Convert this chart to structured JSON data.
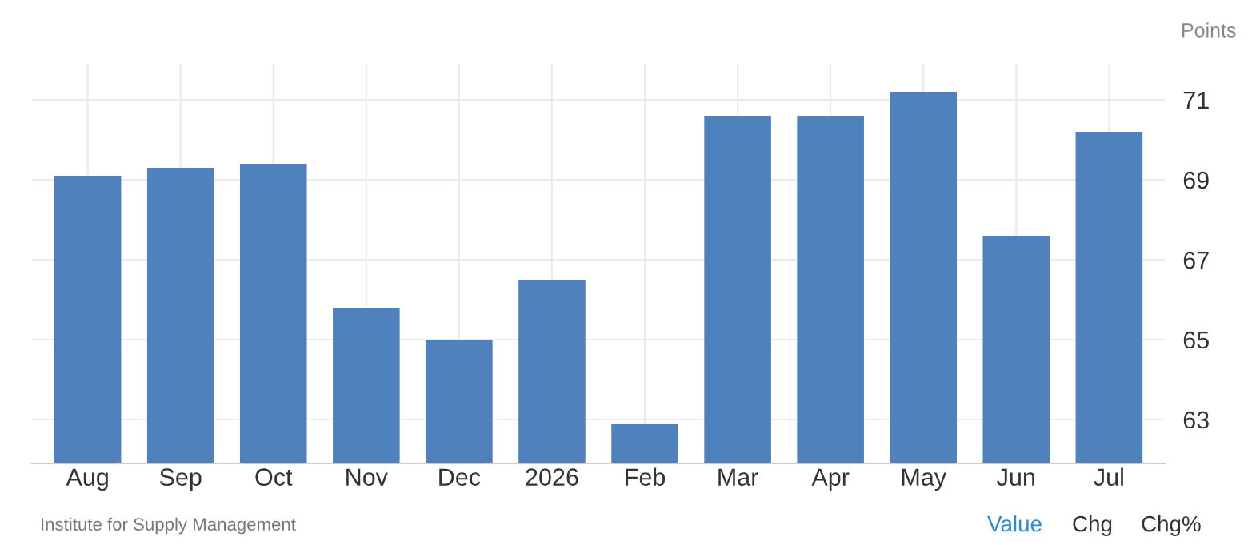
{
  "chart_data": {
    "type": "bar",
    "ylabel": "Points",
    "categories": [
      "Aug",
      "Sep",
      "Oct",
      "Nov",
      "Dec",
      "2026",
      "Feb",
      "Mar",
      "Apr",
      "May",
      "Jun",
      "Jul"
    ],
    "values": [
      69.1,
      69.3,
      69.4,
      65.8,
      65.0,
      66.5,
      62.9,
      70.6,
      70.6,
      71.2,
      67.6,
      70.2
    ],
    "color": "#4f81bd",
    "ylim": [
      61.9,
      71.9
    ],
    "yticks": [
      63,
      65,
      67,
      69,
      71
    ],
    "grid": true,
    "annotations": [
      "Institute for Supply Management",
      "Value",
      "Chg",
      "Chg%"
    ]
  }
}
